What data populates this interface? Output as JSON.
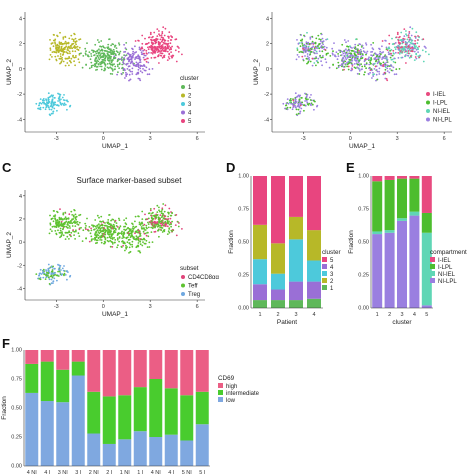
{
  "figure": {
    "panel_letters": [
      "C",
      "D",
      "E",
      "F"
    ]
  },
  "colors": {
    "cluster": {
      "1": "#5FB85A",
      "2": "#B7B828",
      "3": "#4DC9DB",
      "4": "#9A6FD6",
      "5": "#E8457F"
    },
    "compartment": {
      "I-IEL": "#E84A7F",
      "I-LPL": "#4DBD2E",
      "NI-IEL": "#5FD6B5",
      "NI-LPL": "#9A7FE0"
    },
    "subset": {
      "CD4CD8αα": "#E0457A",
      "Teff": "#5EC230",
      "Treg": "#6FA8E0"
    },
    "cd69": {
      "high": "#EB5E85",
      "intermediate": "#49CC2E",
      "low": "#7FA8E0"
    }
  },
  "chart_data": [
    {
      "id": "A",
      "type": "scatter",
      "title": "",
      "xlabel": "UMAP_1",
      "ylabel": "UMAP_2",
      "xticks": [
        -3,
        0,
        3,
        6
      ],
      "yticks": [
        -4,
        -2,
        0,
        2,
        4
      ],
      "xlim": [
        -5,
        6.5
      ],
      "ylim": [
        -5,
        4.5
      ],
      "legend_title": "cluster",
      "legend_labels": [
        "1",
        "2",
        "3",
        "4",
        "5"
      ],
      "legend_placement": "right"
    },
    {
      "id": "B",
      "type": "scatter",
      "title": "",
      "xlabel": "UMAP_1",
      "ylabel": "UMAP_2",
      "xticks": [
        -3,
        0,
        3,
        6
      ],
      "yticks": [
        -4,
        -2,
        0,
        2,
        4
      ],
      "xlim": [
        -5,
        6.5
      ],
      "ylim": [
        -5,
        4.5
      ],
      "legend_title": "",
      "legend_labels": [
        "I-IEL",
        "I-LPL",
        "NI-IEL",
        "NI-LPL"
      ],
      "legend_placement": "right"
    },
    {
      "id": "C",
      "type": "scatter",
      "title": "Surface marker-based subset",
      "xlabel": "UMAP_1",
      "ylabel": "UMAP_2",
      "xticks": [
        -3,
        0,
        3,
        6
      ],
      "yticks": [
        -4,
        -2,
        0,
        2,
        4
      ],
      "xlim": [
        -5,
        6.5
      ],
      "ylim": [
        -5,
        4.5
      ],
      "legend_title": "subset",
      "legend_labels": [
        "CD4CD8αα",
        "Teff",
        "Treg"
      ],
      "legend_placement": "right"
    },
    {
      "id": "D",
      "type": "bar",
      "stacked": true,
      "xlabel": "Patient",
      "ylabel": "Fraction",
      "categories": [
        "1",
        "2",
        "3",
        "4"
      ],
      "ylim": [
        0,
        1
      ],
      "yticks": [
        "0.00",
        "0.25",
        "0.50",
        "0.75",
        "1.00"
      ],
      "legend_title": "cluster",
      "legend_labels": [
        "5",
        "4",
        "3",
        "2",
        "1"
      ],
      "legend_placement": "right",
      "series": [
        {
          "name": "1",
          "values": [
            0.06,
            0.06,
            0.06,
            0.07
          ]
        },
        {
          "name": "4",
          "values": [
            0.12,
            0.08,
            0.14,
            0.13
          ]
        },
        {
          "name": "3",
          "values": [
            0.19,
            0.12,
            0.32,
            0.16
          ]
        },
        {
          "name": "2",
          "values": [
            0.26,
            0.23,
            0.17,
            0.23
          ]
        },
        {
          "name": "5",
          "values": [
            0.37,
            0.51,
            0.31,
            0.41
          ]
        }
      ]
    },
    {
      "id": "E",
      "type": "bar",
      "stacked": true,
      "xlabel": "cluster",
      "ylabel": "Fraction",
      "categories": [
        "1",
        "2",
        "3",
        "4",
        "5"
      ],
      "ylim": [
        0,
        1
      ],
      "yticks": [
        "0.00",
        "0.25",
        "0.50",
        "0.75",
        "1.00"
      ],
      "legend_title": "compartment",
      "legend_labels": [
        "I-IEL",
        "I-LPL",
        "NI-IEL",
        "NI-LPL"
      ],
      "legend_placement": "right",
      "series": [
        {
          "name": "NI-LPL",
          "values": [
            0.56,
            0.57,
            0.66,
            0.7,
            0.02
          ]
        },
        {
          "name": "NI-IEL",
          "values": [
            0.02,
            0.02,
            0.02,
            0.03,
            0.55
          ]
        },
        {
          "name": "I-LPL",
          "values": [
            0.38,
            0.38,
            0.3,
            0.25,
            0.15
          ]
        },
        {
          "name": "I-IEL",
          "values": [
            0.04,
            0.03,
            0.02,
            0.02,
            0.28
          ]
        }
      ]
    },
    {
      "id": "F",
      "type": "bar",
      "stacked": true,
      "xlabel": "",
      "ylabel": "Fraction",
      "categories": [
        "4 NI",
        "4 I",
        "3 NI",
        "3 I",
        "2 NI",
        "2 I",
        "1 NI",
        "1 I",
        "4 NI",
        "4 I",
        "5 NI",
        "5 I"
      ],
      "ylim": [
        0,
        1
      ],
      "yticks": [
        "0.00",
        "0.25",
        "0.50",
        "0.75",
        "1.00"
      ],
      "legend_title": "CD69",
      "legend_labels": [
        "high",
        "intermediate",
        "low"
      ],
      "legend_placement": "right",
      "series": [
        {
          "name": "low",
          "values": [
            0.63,
            0.56,
            0.55,
            0.78,
            0.28,
            0.19,
            0.23,
            0.3,
            0.25,
            0.27,
            0.22,
            0.36
          ]
        },
        {
          "name": "intermediate",
          "values": [
            0.25,
            0.34,
            0.28,
            0.12,
            0.36,
            0.41,
            0.38,
            0.38,
            0.5,
            0.4,
            0.39,
            0.28
          ]
        },
        {
          "name": "high",
          "values": [
            0.12,
            0.1,
            0.17,
            0.1,
            0.36,
            0.4,
            0.39,
            0.32,
            0.25,
            0.33,
            0.39,
            0.36
          ]
        }
      ]
    }
  ]
}
